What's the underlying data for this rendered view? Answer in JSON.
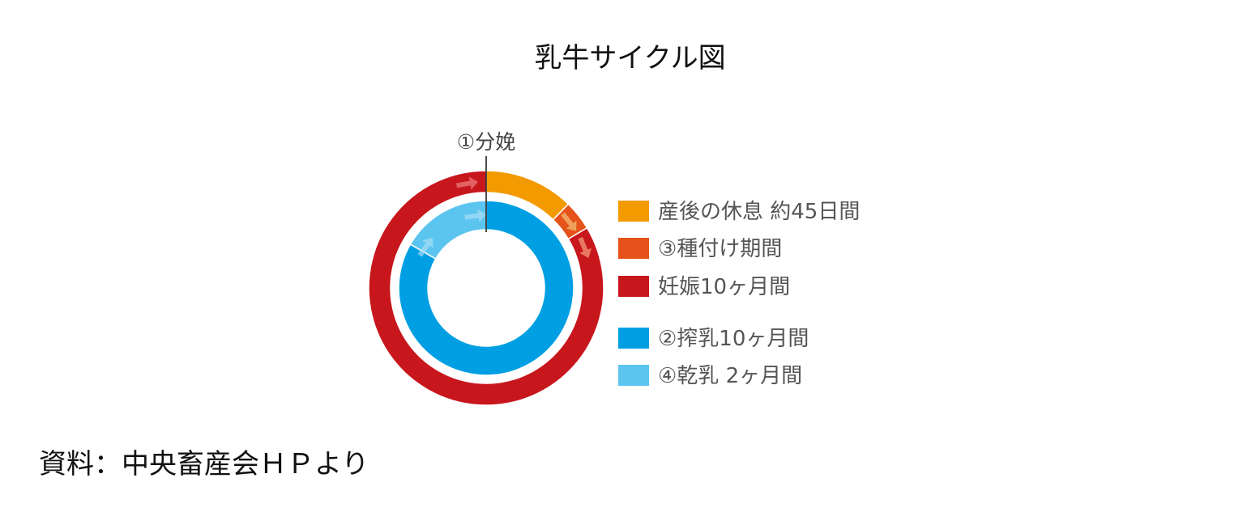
{
  "title": "乳牛サイクル図",
  "source": "資料：中央畜産会ＨＰより",
  "chart_data": {
    "type": "donut",
    "start_label": "①分娩",
    "rings": [
      {
        "ring": "outer",
        "unit": "days",
        "segments": [
          {
            "label": "産後の休息 約45日間",
            "value": 45,
            "color": "#F29A00"
          },
          {
            "label": "③種付け期間",
            "value": 15,
            "color": "#E5531A"
          },
          {
            "label": "妊娠10ヶ月間",
            "value": 305,
            "color": "#C8161D"
          }
        ]
      },
      {
        "ring": "inner",
        "unit": "months",
        "segments": [
          {
            "label": "②搾乳10ヶ月間",
            "value": 10,
            "color": "#009FE3"
          },
          {
            "label": "④乾乳 2ヶ月間",
            "value": 2,
            "color": "#5BC5F0"
          }
        ]
      }
    ],
    "legend": [
      {
        "label": "産後の休息 約45日間",
        "color": "#F29A00"
      },
      {
        "label": "③種付け期間",
        "color": "#E5531A"
      },
      {
        "label": "妊娠10ヶ月間",
        "color": "#C8161D"
      },
      {
        "label": "②搾乳10ヶ月間",
        "color": "#009FE3"
      },
      {
        "label": "④乾乳 2ヶ月間",
        "color": "#5BC5F0"
      }
    ],
    "legend_placement": "right"
  }
}
